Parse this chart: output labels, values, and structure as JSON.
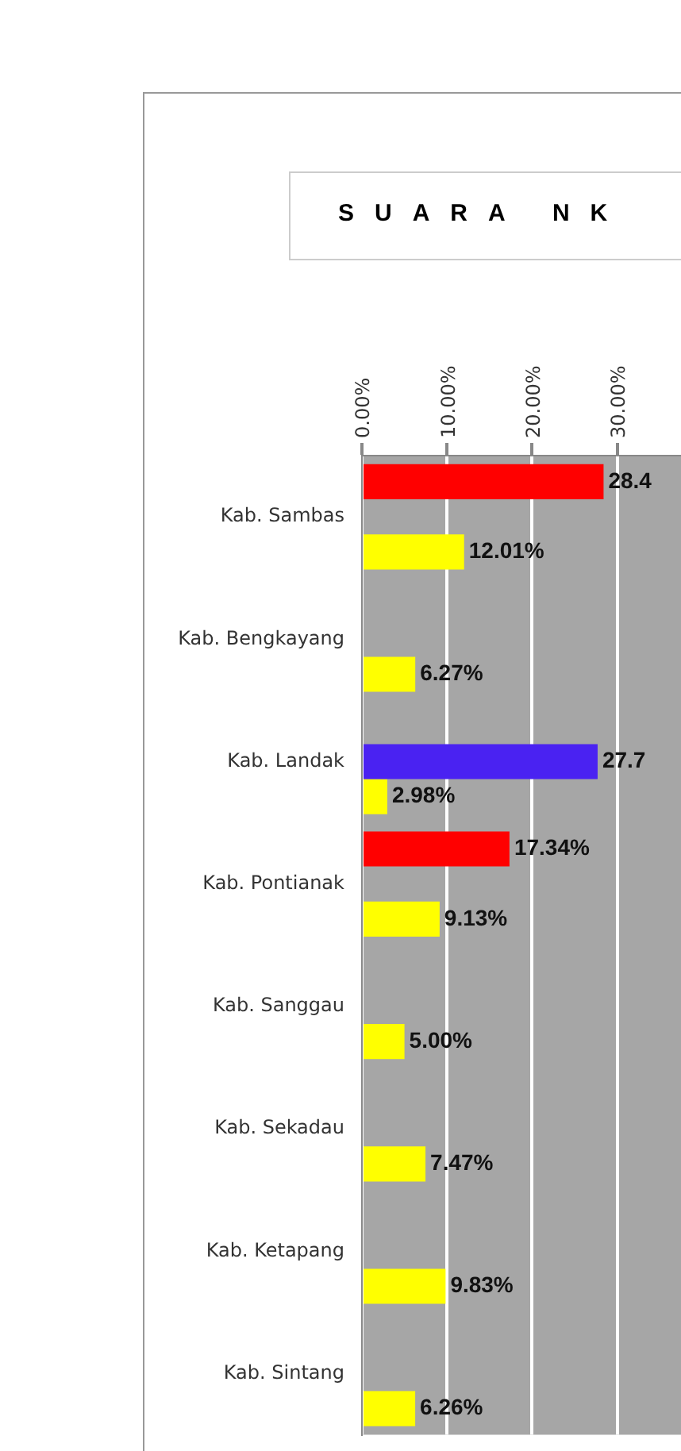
{
  "chart_data": {
    "type": "bar",
    "orientation": "horizontal",
    "title": "SUARA NK",
    "categories": [
      "Kab. Sambas",
      "Kab. Bengkayang",
      "Kab. Landak",
      "Kab. Pontianak",
      "Kab. Sanggau",
      "Kab. Sekadau",
      "Kab. Ketapang",
      "Kab. Sintang"
    ],
    "series": [
      {
        "color": "#ff0000",
        "values": [
          28.4,
          null,
          null,
          17.34,
          null,
          null,
          null,
          null
        ],
        "value_labels": [
          "28.4",
          null,
          null,
          "17.34%",
          null,
          null,
          null,
          null
        ]
      },
      {
        "color": "#4a22f2",
        "values": [
          null,
          null,
          27.7,
          null,
          null,
          null,
          null,
          null
        ],
        "value_labels": [
          null,
          null,
          "27.7",
          null,
          null,
          null,
          null,
          null
        ]
      },
      {
        "color": "#ffff00",
        "values": [
          12.01,
          6.27,
          2.98,
          9.13,
          5.0,
          7.47,
          9.83,
          6.26
        ],
        "value_labels": [
          "12.01%",
          "6.27%",
          "2.98%",
          "9.13%",
          "5.00%",
          "7.47%",
          "9.83%",
          "6.26%"
        ]
      }
    ],
    "xlim": [
      0,
      37.5
    ],
    "xticks": [
      {
        "value": 0,
        "label": "0.00%"
      },
      {
        "value": 10,
        "label": "10.00%"
      },
      {
        "value": 20,
        "label": "20.00%"
      },
      {
        "value": 30,
        "label": "30.00%"
      }
    ],
    "grid": "x",
    "legend": false
  }
}
